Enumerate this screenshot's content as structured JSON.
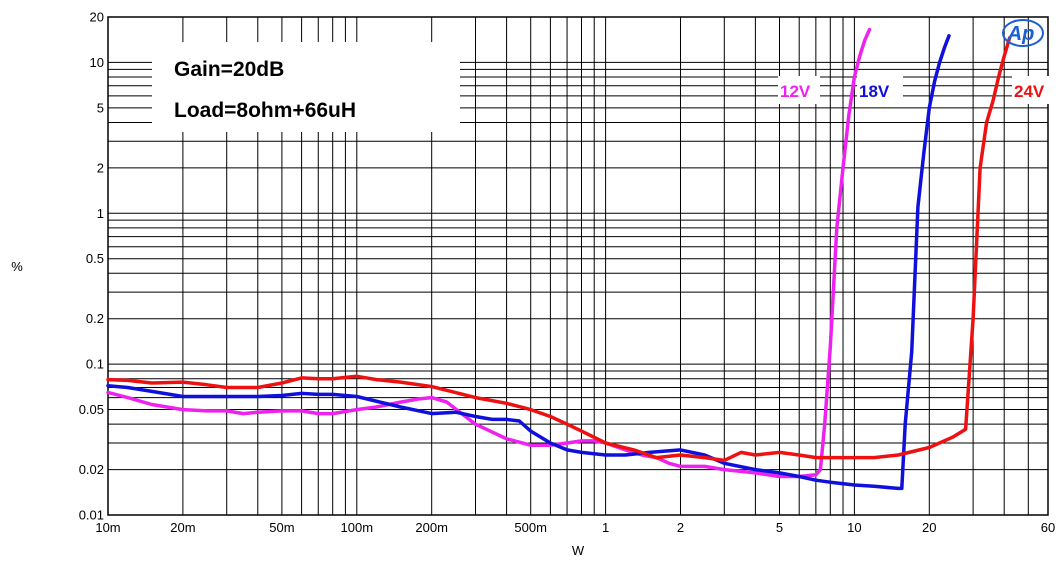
{
  "chart_data": {
    "type": "line",
    "x_scale": "log",
    "y_scale": "log",
    "xlabel": "W",
    "ylabel": "%",
    "xlim": [
      0.01,
      60
    ],
    "ylim": [
      0.01,
      20
    ],
    "x_ticks": [
      {
        "v": 0.01,
        "label": "10m"
      },
      {
        "v": 0.02,
        "label": "20m"
      },
      {
        "v": 0.05,
        "label": "50m"
      },
      {
        "v": 0.1,
        "label": "100m"
      },
      {
        "v": 0.2,
        "label": "200m"
      },
      {
        "v": 0.5,
        "label": "500m"
      },
      {
        "v": 1,
        "label": "1"
      },
      {
        "v": 2,
        "label": "2"
      },
      {
        "v": 5,
        "label": "5"
      },
      {
        "v": 10,
        "label": "10"
      },
      {
        "v": 20,
        "label": "20"
      },
      {
        "v": 60,
        "label": "60"
      }
    ],
    "y_ticks": [
      {
        "v": 0.01,
        "label": "0.01"
      },
      {
        "v": 0.02,
        "label": "0.02"
      },
      {
        "v": 0.05,
        "label": "0.05"
      },
      {
        "v": 0.1,
        "label": "0.1"
      },
      {
        "v": 0.2,
        "label": "0.2"
      },
      {
        "v": 0.5,
        "label": "0.5"
      },
      {
        "v": 1,
        "label": "1"
      },
      {
        "v": 2,
        "label": "2"
      },
      {
        "v": 5,
        "label": "5"
      },
      {
        "v": 10,
        "label": "10"
      },
      {
        "v": 20,
        "label": "20"
      }
    ],
    "grid": true,
    "annotations": [
      "Gain=20dB",
      "Load=8ohm+66uH"
    ],
    "logo": "Ap",
    "series": [
      {
        "name": "12V",
        "color": "#ee22ee",
        "points": [
          [
            0.01,
            0.065
          ],
          [
            0.012,
            0.06
          ],
          [
            0.015,
            0.054
          ],
          [
            0.02,
            0.05
          ],
          [
            0.025,
            0.049
          ],
          [
            0.03,
            0.049
          ],
          [
            0.035,
            0.047
          ],
          [
            0.04,
            0.048
          ],
          [
            0.05,
            0.049
          ],
          [
            0.06,
            0.049
          ],
          [
            0.07,
            0.047
          ],
          [
            0.08,
            0.047
          ],
          [
            0.1,
            0.05
          ],
          [
            0.12,
            0.052
          ],
          [
            0.15,
            0.056
          ],
          [
            0.18,
            0.059
          ],
          [
            0.2,
            0.06
          ],
          [
            0.23,
            0.056
          ],
          [
            0.3,
            0.04
          ],
          [
            0.4,
            0.032
          ],
          [
            0.5,
            0.029
          ],
          [
            0.6,
            0.029
          ],
          [
            0.7,
            0.03
          ],
          [
            0.8,
            0.031
          ],
          [
            0.9,
            0.031
          ],
          [
            1.0,
            0.03
          ],
          [
            1.2,
            0.027
          ],
          [
            1.4,
            0.025
          ],
          [
            1.6,
            0.024
          ],
          [
            1.8,
            0.022
          ],
          [
            2.0,
            0.021
          ],
          [
            2.5,
            0.021
          ],
          [
            3.0,
            0.02
          ],
          [
            4.0,
            0.019
          ],
          [
            5.0,
            0.018
          ],
          [
            6.0,
            0.018
          ],
          [
            7.0,
            0.0185
          ],
          [
            7.3,
            0.02
          ],
          [
            7.6,
            0.04
          ],
          [
            8.0,
            0.13
          ],
          [
            8.5,
            0.8
          ],
          [
            9.0,
            2.0
          ],
          [
            9.5,
            4.5
          ],
          [
            10.0,
            8.0
          ],
          [
            10.5,
            11.0
          ],
          [
            11.0,
            14.0
          ],
          [
            11.5,
            16.5
          ]
        ]
      },
      {
        "name": "18V",
        "color": "#1010dd",
        "points": [
          [
            0.01,
            0.072
          ],
          [
            0.012,
            0.07
          ],
          [
            0.015,
            0.066
          ],
          [
            0.02,
            0.061
          ],
          [
            0.03,
            0.061
          ],
          [
            0.04,
            0.061
          ],
          [
            0.05,
            0.062
          ],
          [
            0.06,
            0.064
          ],
          [
            0.07,
            0.063
          ],
          [
            0.08,
            0.063
          ],
          [
            0.1,
            0.061
          ],
          [
            0.15,
            0.052
          ],
          [
            0.2,
            0.047
          ],
          [
            0.25,
            0.048
          ],
          [
            0.3,
            0.045
          ],
          [
            0.35,
            0.043
          ],
          [
            0.4,
            0.043
          ],
          [
            0.45,
            0.042
          ],
          [
            0.5,
            0.036
          ],
          [
            0.6,
            0.03
          ],
          [
            0.7,
            0.027
          ],
          [
            0.8,
            0.026
          ],
          [
            1.0,
            0.025
          ],
          [
            1.2,
            0.025
          ],
          [
            1.5,
            0.026
          ],
          [
            2.0,
            0.027
          ],
          [
            2.5,
            0.025
          ],
          [
            3.0,
            0.022
          ],
          [
            4.0,
            0.02
          ],
          [
            5.0,
            0.019
          ],
          [
            6.0,
            0.018
          ],
          [
            7.0,
            0.017
          ],
          [
            8.0,
            0.0165
          ],
          [
            10.0,
            0.0158
          ],
          [
            12.0,
            0.0155
          ],
          [
            15.0,
            0.015
          ],
          [
            15.5,
            0.015
          ],
          [
            16.0,
            0.04
          ],
          [
            17.0,
            0.12
          ],
          [
            18.0,
            1.1
          ],
          [
            19.0,
            2.5
          ],
          [
            20.0,
            5.0
          ],
          [
            21.0,
            7.5
          ],
          [
            22.0,
            10.0
          ],
          [
            23.0,
            12.5
          ],
          [
            24.0,
            15.0
          ]
        ]
      },
      {
        "name": "24V",
        "color": "#ee1111",
        "points": [
          [
            0.01,
            0.079
          ],
          [
            0.012,
            0.078
          ],
          [
            0.015,
            0.075
          ],
          [
            0.02,
            0.076
          ],
          [
            0.025,
            0.073
          ],
          [
            0.03,
            0.07
          ],
          [
            0.04,
            0.07
          ],
          [
            0.05,
            0.075
          ],
          [
            0.06,
            0.081
          ],
          [
            0.07,
            0.08
          ],
          [
            0.08,
            0.08
          ],
          [
            0.1,
            0.083
          ],
          [
            0.12,
            0.079
          ],
          [
            0.15,
            0.076
          ],
          [
            0.2,
            0.071
          ],
          [
            0.3,
            0.06
          ],
          [
            0.4,
            0.055
          ],
          [
            0.5,
            0.05
          ],
          [
            0.6,
            0.045
          ],
          [
            0.7,
            0.04
          ],
          [
            0.8,
            0.036
          ],
          [
            1.0,
            0.03
          ],
          [
            1.3,
            0.027
          ],
          [
            1.6,
            0.024
          ],
          [
            2.0,
            0.025
          ],
          [
            2.5,
            0.024
          ],
          [
            3.0,
            0.023
          ],
          [
            3.5,
            0.026
          ],
          [
            4.0,
            0.025
          ],
          [
            5.0,
            0.026
          ],
          [
            6.0,
            0.025
          ],
          [
            7.0,
            0.024
          ],
          [
            8.0,
            0.024
          ],
          [
            10.0,
            0.024
          ],
          [
            12.0,
            0.024
          ],
          [
            15.0,
            0.025
          ],
          [
            20.0,
            0.028
          ],
          [
            25.0,
            0.033
          ],
          [
            28.0,
            0.037
          ],
          [
            30.0,
            0.2
          ],
          [
            32.0,
            2.0
          ],
          [
            34.0,
            4.0
          ],
          [
            36.0,
            5.5
          ],
          [
            38.0,
            8.0
          ],
          [
            40.0,
            11.0
          ],
          [
            42.0,
            14.5
          ]
        ]
      }
    ]
  }
}
